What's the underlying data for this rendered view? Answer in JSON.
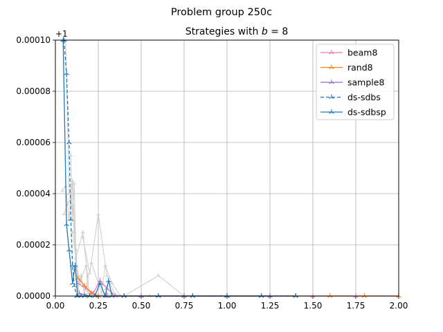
{
  "chart_data": {
    "type": "line",
    "suptitle": "Problem group 250c",
    "title": "Strategies with b = 8",
    "title_prefix": "Strategies with ",
    "title_var": "b",
    "title_suffix": " = 8",
    "xlabel": "",
    "ylabel": "",
    "xlim": [
      0.0,
      2.0
    ],
    "ylim": [
      0.0,
      0.0001
    ],
    "y_offset_label": "+1",
    "xticks": [
      "0.00",
      "0.25",
      "0.50",
      "0.75",
      "1.00",
      "1.25",
      "1.50",
      "1.75",
      "2.00"
    ],
    "xtick_values": [
      0,
      0.25,
      0.5,
      0.75,
      1.0,
      1.25,
      1.5,
      1.75,
      2.0
    ],
    "yticks": [
      "0.00000",
      "0.00002",
      "0.00004",
      "0.00006",
      "0.00008",
      "0.00010"
    ],
    "ytick_values": [
      0,
      2e-05,
      4e-05,
      6e-05,
      8e-05,
      0.0001
    ],
    "grid": true,
    "legend_position": "top-right",
    "series": [
      {
        "name": "beam8",
        "color": "#e377c2",
        "dash": "solid",
        "x": [
          0.13,
          0.18,
          0.22,
          0.26,
          0.3,
          0.35,
          0.5,
          0.75,
          1.0,
          1.25,
          1.5,
          1.75,
          2.0
        ],
        "y": [
          5e-06,
          3e-06,
          1e-06,
          6e-06,
          3e-06,
          0.0,
          0.0,
          0.0,
          0.0,
          0.0,
          0.0,
          0.0,
          0.0
        ]
      },
      {
        "name": "rand8",
        "color": "#ff7f0e",
        "dash": "solid",
        "x": [
          0.13,
          0.17,
          0.21,
          0.25,
          0.3,
          0.4,
          0.6,
          0.8,
          1.0,
          1.2,
          1.4,
          1.6,
          1.8,
          2.0
        ],
        "y": [
          7e-06,
          4e-06,
          1e-06,
          0.0,
          0.0,
          0.0,
          0.0,
          0.0,
          0.0,
          0.0,
          0.0,
          0.0,
          0.0,
          0.0
        ]
      },
      {
        "name": "sample8",
        "color": "#9467bd",
        "dash": "solid",
        "x": [
          0.14,
          0.2,
          0.3,
          0.5,
          0.75,
          1.0,
          1.25
        ],
        "y": [
          1e-06,
          0.0,
          0.0,
          0.0,
          0.0,
          0.0,
          0.0
        ]
      },
      {
        "name": "ds-sdbs",
        "color": "#1f77b4",
        "dash": "dashed",
        "x": [
          0.05,
          0.065,
          0.08,
          0.09,
          0.1,
          0.11,
          0.125,
          0.2,
          0.4,
          0.6,
          0.8,
          1.0,
          1.2,
          1.4
        ],
        "y": [
          0.0001,
          8.7e-05,
          6e-05,
          3e-05,
          1.2e-05,
          4e-06,
          0.0,
          0.0,
          0.0,
          0.0,
          0.0,
          0.0,
          0.0,
          0.0
        ]
      },
      {
        "name": "ds-sdbsp",
        "color": "#1f77b4",
        "dash": "solid",
        "x": [
          0.045,
          0.065,
          0.08,
          0.1,
          0.115,
          0.13,
          0.15,
          0.17,
          0.2,
          0.23,
          0.26,
          0.29,
          0.31,
          0.33,
          0.4,
          0.6,
          0.8,
          1.0,
          1.2,
          1.4
        ],
        "y": [
          0.0001,
          2.8e-05,
          1.8e-05,
          5e-06,
          1.2e-05,
          0.0,
          0.0,
          0.0,
          0.0,
          0.0,
          5e-06,
          0.0,
          6e-06,
          0.0,
          0.0,
          0.0,
          0.0,
          0.0,
          0.0,
          0.0
        ]
      }
    ],
    "background_series": [
      {
        "x": [
          0.04,
          0.06,
          0.08,
          0.1,
          0.12,
          0.15,
          0.2,
          0.3
        ],
        "y": [
          4.1e-05,
          4.3e-05,
          3e-05,
          4.5e-05,
          1e-05,
          6e-06,
          0.0,
          0.0
        ]
      },
      {
        "x": [
          0.05,
          0.07,
          0.09,
          0.11,
          0.13
        ],
        "y": [
          3.2e-05,
          3.6e-05,
          3.8e-05,
          2.5e-05,
          0.0
        ]
      },
      {
        "x": [
          0.06,
          0.08,
          0.1,
          0.12,
          0.16,
          0.2
        ],
        "y": [
          0.0001,
          4e-05,
          4.4e-05,
          1.5e-05,
          2.5e-05,
          0.0
        ]
      },
      {
        "x": [
          0.09,
          0.1,
          0.11,
          0.12,
          0.14
        ],
        "y": [
          5.5e-05,
          3e-05,
          4.4e-05,
          1.2e-05,
          0.0
        ]
      },
      {
        "x": [
          0.1,
          0.14,
          0.18,
          0.19,
          0.3
        ],
        "y": [
          2.5e-05,
          5e-06,
          1.2e-05,
          1e-06,
          0.0
        ]
      },
      {
        "x": [
          0.16,
          0.2,
          0.25,
          0.3,
          0.35
        ],
        "y": [
          2.3e-05,
          9e-06,
          3.2e-05,
          8e-06,
          0.0
        ]
      },
      {
        "x": [
          0.17,
          0.21,
          0.27,
          0.29,
          0.33,
          0.38
        ],
        "y": [
          1e-06,
          1.3e-05,
          1e-06,
          1.2e-05,
          5e-06,
          0.0
        ]
      },
      {
        "x": [
          0.3,
          0.4,
          0.6,
          0.75,
          0.8
        ],
        "y": [
          1e-06,
          0.0,
          8e-06,
          0.0,
          0.0
        ]
      },
      {
        "x": [
          0.4,
          0.55,
          0.75,
          1.0
        ],
        "y": [
          0.0,
          0.0,
          0.0,
          0.0
        ]
      },
      {
        "x": [
          0.12,
          0.13,
          0.15,
          0.17,
          0.2
        ],
        "y": [
          1.8e-05,
          2e-06,
          8e-06,
          0.0,
          0.0
        ]
      }
    ],
    "background_color": "#cccccc"
  }
}
